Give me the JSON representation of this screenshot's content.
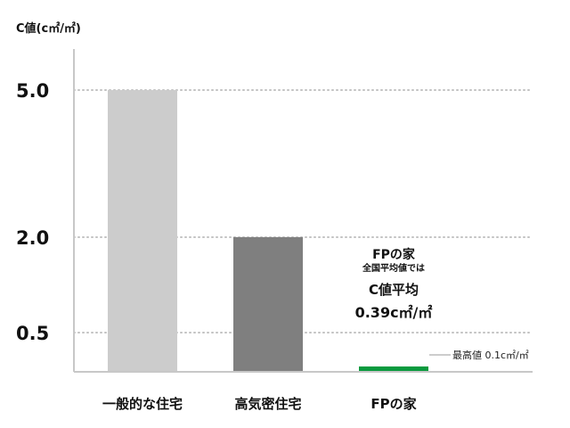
{
  "chart_data": {
    "type": "bar",
    "ylabel": "C値(c㎡/㎡)",
    "categories": [
      "一般的な住宅",
      "高気密住宅",
      "FPの家"
    ],
    "values": [
      5.0,
      2.0,
      0.1
    ],
    "yticks": [
      "5.0",
      "2.0",
      "0.5"
    ],
    "ytick_values": [
      5.0,
      2.0,
      0.5
    ],
    "grid": "horizontal dotted at tick values",
    "colors": [
      "#cccccc",
      "#7f7f7f",
      "#0a9a3e"
    ],
    "annotation": {
      "line1": "FPの家",
      "line2": "全国平均値では",
      "line3": "C値平均",
      "line4": "0.39c㎡/㎡"
    },
    "callout": "最高値 0.1c㎡/㎡"
  }
}
